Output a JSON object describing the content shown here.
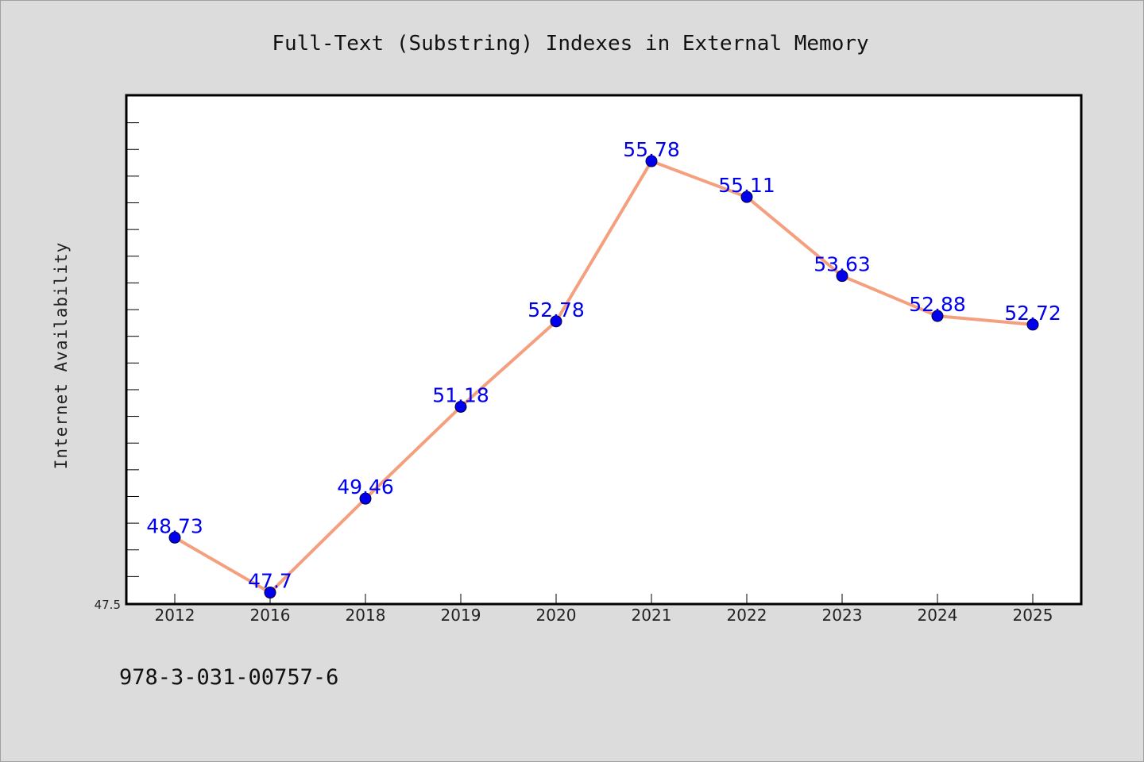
{
  "chart_data": {
    "type": "line",
    "title": "Full-Text (Substring) Indexes in External Memory",
    "xlabel": "",
    "ylabel": "Internet Availability",
    "categories": [
      "2012",
      "2016",
      "2018",
      "2019",
      "2020",
      "2021",
      "2022",
      "2023",
      "2024",
      "2025"
    ],
    "series": [
      {
        "values": [
          48.73,
          47.7,
          49.46,
          51.18,
          52.78,
          55.78,
          55.11,
          53.63,
          52.88,
          52.72
        ],
        "data_labels": [
          "48.73",
          "47.7",
          "49.46",
          "51.18",
          "52.78",
          "55.78",
          "55.11",
          "53.63",
          "52.88",
          "52.72"
        ],
        "line_color": "#f4a07e",
        "marker_color": "#0000ee",
        "label_color": "#0000ee"
      }
    ],
    "ylim": [
      47.5,
      57.0
    ],
    "yticks": [
      "47.5"
    ],
    "grid": false,
    "legend": "none"
  },
  "footer": {
    "isbn": "978-3-031-00757-6"
  },
  "colors": {
    "background": "#dcdcdc",
    "plot_background": "#ffffff",
    "axis": "#000000"
  }
}
